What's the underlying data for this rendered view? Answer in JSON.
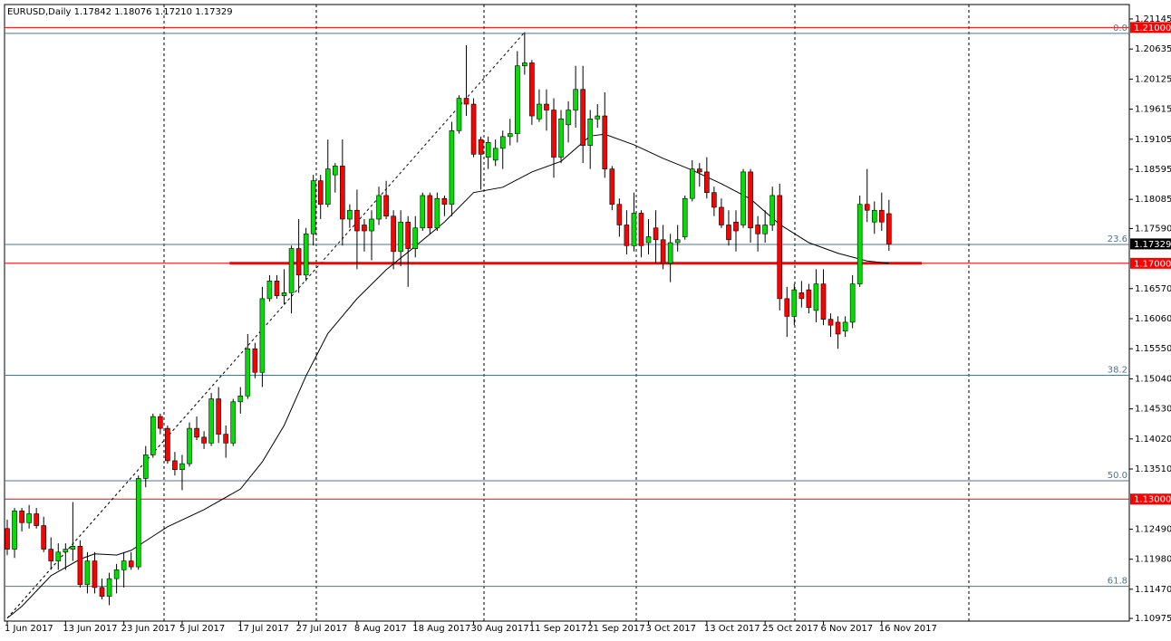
{
  "chart_data": {
    "type": "candlestick",
    "title": "EURUSD,Daily  1.17842 1.18076 1.17210 1.17329",
    "up_color": "#00e000",
    "down_color": "#ff0000",
    "categories": [
      "1 Jun 2017",
      null,
      null,
      null,
      null,
      null,
      null,
      null,
      "13 Jun 2017",
      null,
      null,
      null,
      null,
      null,
      null,
      null,
      "23 Jun 2017",
      null,
      null,
      null,
      null,
      null,
      null,
      null,
      "5 Jul 2017",
      null,
      null,
      null,
      null,
      null,
      null,
      null,
      "17 Jul 2017",
      null,
      null,
      null,
      null,
      null,
      null,
      null,
      "27 Jul 2017",
      null,
      null,
      null,
      null,
      null,
      null,
      null,
      "8 Aug 2017",
      null,
      null,
      null,
      null,
      null,
      null,
      null,
      "18 Aug 2017",
      null,
      null,
      null,
      null,
      null,
      null,
      null,
      "30 Aug 2017",
      null,
      null,
      null,
      null,
      null,
      null,
      null,
      "11 Sep 2017",
      null,
      null,
      null,
      null,
      null,
      null,
      null,
      "21 Sep 2017",
      null,
      null,
      null,
      null,
      null,
      null,
      null,
      "3 Oct 2017",
      null,
      null,
      null,
      null,
      null,
      null,
      null,
      "13 Oct 2017",
      null,
      null,
      null,
      null,
      null,
      null,
      null,
      "25 Oct 2017",
      null,
      null,
      null,
      null,
      null,
      null,
      null,
      "6 Nov 2017",
      null,
      null,
      null,
      null,
      null,
      null,
      null,
      "16 Nov 2017",
      null
    ],
    "open": [
      1.125,
      1.1215,
      1.128,
      1.126,
      1.1275,
      1.1255,
      1.1215,
      1.1195,
      1.121,
      1.1215,
      1.122,
      1.1155,
      1.1195,
      1.115,
      1.1135,
      1.1165,
      1.118,
      1.1195,
      1.1185,
      1.1335,
      1.1375,
      1.144,
      1.142,
      1.1365,
      1.135,
      1.136,
      1.142,
      1.1405,
      1.1395,
      1.147,
      1.141,
      1.1395,
      1.1465,
      1.1475,
      1.1555,
      1.1515,
      1.164,
      1.167,
      1.1645,
      1.165,
      1.1725,
      1.168,
      1.175,
      1.184,
      1.18,
      1.185,
      1.1865,
      1.1775,
      1.179,
      1.1765,
      1.1755,
      1.1775,
      1.1815,
      1.178,
      1.172,
      1.177,
      1.1725,
      1.176,
      1.1815,
      1.176,
      1.181,
      1.18,
      1.1925,
      1.198,
      1.197,
      1.191,
      1.188,
      1.1875,
      1.1895,
      1.1915,
      1.192,
      1.2035,
      1.204,
      1.1945,
      1.197,
      1.196,
      1.188,
      1.1935,
      1.196,
      1.1995,
      1.19,
      1.1945,
      1.195,
      1.186,
      1.18,
      1.1765,
      1.173,
      1.1785,
      1.1735,
      1.176,
      1.174,
      1.17,
      1.1735,
      1.1745,
      1.181,
      1.186,
      1.1855,
      1.182,
      1.1795,
      1.1765,
      1.177,
      1.1765,
      1.1855,
      1.1765,
      1.175,
      1.1765,
      1.1815,
      1.164,
      1.161,
      1.165,
      1.1655,
      1.162,
      1.1665,
      1.1605,
      1.16,
      1.1585,
      1.16,
      1.1665,
      1.18,
      1.177,
      1.179,
      1.17842
    ],
    "high": [
      1.1265,
      1.1285,
      1.1285,
      1.129,
      1.1285,
      1.127,
      1.1235,
      1.1225,
      1.1225,
      1.1295,
      1.123,
      1.121,
      1.121,
      1.1165,
      1.1175,
      1.119,
      1.121,
      1.121,
      1.134,
      1.139,
      1.1445,
      1.1445,
      1.1425,
      1.138,
      1.1375,
      1.143,
      1.144,
      1.1415,
      1.148,
      1.149,
      1.1425,
      1.147,
      1.149,
      1.158,
      1.1565,
      1.166,
      1.168,
      1.168,
      1.169,
      1.173,
      1.1775,
      1.176,
      1.185,
      1.185,
      1.191,
      1.187,
      1.191,
      1.18,
      1.1825,
      1.1775,
      1.179,
      1.183,
      1.184,
      1.179,
      1.179,
      1.178,
      1.178,
      1.182,
      1.182,
      1.182,
      1.1815,
      1.194,
      1.1985,
      1.207,
      1.198,
      1.1915,
      1.1915,
      1.191,
      1.1925,
      1.1945,
      1.206,
      1.2092,
      1.2045,
      1.1995,
      1.1995,
      1.198,
      1.196,
      1.1975,
      1.2035,
      1.2035,
      1.196,
      1.197,
      1.199,
      1.1865,
      1.181,
      1.179,
      1.182,
      1.179,
      1.1775,
      1.179,
      1.1765,
      1.175,
      1.1765,
      1.1815,
      1.1875,
      1.187,
      1.188,
      1.183,
      1.181,
      1.179,
      1.179,
      1.186,
      1.186,
      1.178,
      1.179,
      1.183,
      1.1835,
      1.166,
      1.1665,
      1.167,
      1.1665,
      1.169,
      1.169,
      1.1615,
      1.161,
      1.161,
      1.168,
      1.1815,
      1.186,
      1.1805,
      1.182,
      1.18076
    ],
    "low": [
      1.1205,
      1.12,
      1.1245,
      1.125,
      1.125,
      1.121,
      1.118,
      1.118,
      1.118,
      1.1195,
      1.115,
      1.114,
      1.114,
      1.113,
      1.112,
      1.114,
      1.115,
      1.118,
      1.118,
      1.132,
      1.137,
      1.141,
      1.136,
      1.134,
      1.1315,
      1.1355,
      1.14,
      1.1385,
      1.139,
      1.1395,
      1.137,
      1.139,
      1.1445,
      1.147,
      1.1505,
      1.149,
      1.1635,
      1.164,
      1.163,
      1.1615,
      1.165,
      1.167,
      1.173,
      1.1775,
      1.1795,
      1.182,
      1.173,
      1.176,
      1.169,
      1.172,
      1.1705,
      1.1765,
      1.1775,
      1.169,
      1.1695,
      1.166,
      1.171,
      1.1755,
      1.175,
      1.1755,
      1.178,
      1.178,
      1.192,
      1.195,
      1.188,
      1.1825,
      1.186,
      1.1865,
      1.186,
      1.19,
      1.1905,
      1.202,
      1.1935,
      1.194,
      1.1925,
      1.1845,
      1.187,
      1.1905,
      1.193,
      1.187,
      1.186,
      1.193,
      1.1845,
      1.179,
      1.1745,
      1.1715,
      1.172,
      1.171,
      1.1715,
      1.17,
      1.169,
      1.1668,
      1.172,
      1.174,
      1.1805,
      1.183,
      1.181,
      1.178,
      1.176,
      1.173,
      1.172,
      1.176,
      1.1735,
      1.172,
      1.1735,
      1.1755,
      1.162,
      1.1575,
      1.1595,
      1.1625,
      1.1615,
      1.16,
      1.1595,
      1.1575,
      1.1555,
      1.1575,
      1.159,
      1.166,
      1.177,
      1.175,
      1.1755,
      1.1721
    ],
    "close": [
      1.1215,
      1.128,
      1.126,
      1.1275,
      1.1255,
      1.1215,
      1.1195,
      1.121,
      1.1215,
      1.122,
      1.1155,
      1.1195,
      1.115,
      1.1135,
      1.1165,
      1.118,
      1.1195,
      1.1185,
      1.1335,
      1.1375,
      1.144,
      1.142,
      1.1365,
      1.135,
      1.136,
      1.142,
      1.1405,
      1.1395,
      1.147,
      1.141,
      1.1395,
      1.1465,
      1.1475,
      1.1555,
      1.1515,
      1.164,
      1.167,
      1.1645,
      1.165,
      1.1725,
      1.168,
      1.175,
      1.184,
      1.18,
      1.186,
      1.1865,
      1.1775,
      1.179,
      1.1755,
      1.1755,
      1.1775,
      1.1815,
      1.178,
      1.172,
      1.177,
      1.1725,
      1.176,
      1.1815,
      1.176,
      1.181,
      1.18,
      1.1925,
      1.198,
      1.197,
      1.1885,
      1.1885,
      1.1905,
      1.1895,
      1.1915,
      1.192,
      1.2035,
      1.204,
      1.195,
      1.197,
      1.196,
      1.188,
      1.1945,
      1.196,
      1.1995,
      1.19,
      1.1945,
      1.195,
      1.186,
      1.18,
      1.1765,
      1.173,
      1.1785,
      1.173,
      1.1745,
      1.174,
      1.17,
      1.1735,
      1.174,
      1.181,
      1.186,
      1.1855,
      1.182,
      1.1795,
      1.1765,
      1.174,
      1.1755,
      1.1855,
      1.176,
      1.175,
      1.1765,
      1.1815,
      1.164,
      1.161,
      1.1655,
      1.164,
      1.1625,
      1.1665,
      1.1605,
      1.1595,
      1.158,
      1.16,
      1.1665,
      1.18,
      1.179,
      1.179,
      1.177,
      1.17329
    ],
    "ma": {
      "color": "#000000",
      "x": [
        0,
        2,
        6,
        10,
        12,
        15,
        17,
        20,
        22,
        27,
        32,
        35,
        38,
        41,
        44,
        48,
        52,
        56,
        60,
        64,
        68,
        72,
        76,
        80,
        82,
        86,
        90,
        94,
        98,
        102,
        106,
        110,
        114,
        118,
        121
      ],
      "values": [
        1.1098,
        1.1118,
        1.117,
        1.1198,
        1.1207,
        1.1205,
        1.1213,
        1.1237,
        1.1253,
        1.1282,
        1.1317,
        1.1363,
        1.1425,
        1.1509,
        1.1581,
        1.164,
        1.1689,
        1.1729,
        1.177,
        1.182,
        1.1829,
        1.1855,
        1.1873,
        1.1916,
        1.1919,
        1.1901,
        1.1878,
        1.1858,
        1.1835,
        1.1809,
        1.1766,
        1.1735,
        1.1717,
        1.1704,
        1.17
      ]
    },
    "fib_line": {
      "x": [
        0,
        71
      ],
      "values": [
        1.1098,
        1.2092
      ]
    },
    "fib_levels": [
      {
        "value": 1.209,
        "label": "0.0"
      },
      {
        "value": 1.1732,
        "label": "23.6"
      },
      {
        "value": 1.151,
        "label": "38.2"
      },
      {
        "value": 1.1331,
        "label": "50.0"
      },
      {
        "value": 1.1152,
        "label": "61.8"
      }
    ],
    "fib_color": "#4f7391",
    "price_levels": [
      {
        "value": 1.21,
        "label": "1.21000",
        "color": "#ff0000",
        "line": true
      },
      {
        "value": 1.17329,
        "label": "1.17329",
        "color": "#000000",
        "line": false
      },
      {
        "value": 1.17,
        "label": "1.17000",
        "color": "#ff0000",
        "line": true
      },
      {
        "value": 1.13,
        "label": "1.13000",
        "color": "#ff0000",
        "line": true
      }
    ],
    "support": {
      "value": 1.17,
      "x": [
        30.5,
        125.5
      ],
      "color": "#ff0000"
    },
    "ylim": [
      1.1093,
      1.2139
    ],
    "yticks": [
      1.21145,
      1.20635,
      1.20125,
      1.19615,
      1.19105,
      1.18595,
      1.18085,
      {
        "value": 1.1759,
        "label": "1.17590"
      },
      {
        "value": 1.1657,
        "label": "1.16570"
      },
      {
        "value": 1.1606,
        "label": "1.16060"
      },
      {
        "value": 1.1555,
        "label": "1.15550"
      },
      {
        "value": 1.1504,
        "label": "1.15040"
      },
      {
        "value": 1.1453,
        "label": "1.14530"
      },
      {
        "value": 1.1402,
        "label": "1.14020"
      },
      {
        "value": 1.1351,
        "label": "1.13510"
      },
      {
        "value": 1.1249,
        "label": "1.12490"
      },
      {
        "value": 1.1198,
        "label": "1.11980"
      },
      {
        "value": 1.1147,
        "label": "1.11470"
      },
      1.10975
    ]
  }
}
